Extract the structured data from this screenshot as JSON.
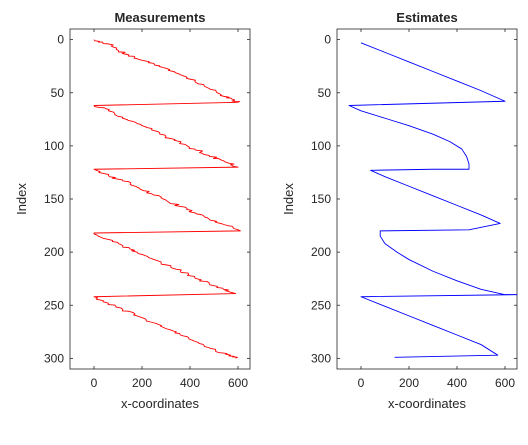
{
  "chart_data": [
    {
      "type": "line",
      "title": "Measurements",
      "xlabel": "x-coordinates",
      "ylabel": "Index",
      "xlim": [
        -100,
        650
      ],
      "ylim": [
        -10,
        310
      ],
      "y_reversed": true,
      "xticks": [
        0,
        200,
        400,
        600
      ],
      "yticks": [
        0,
        50,
        100,
        150,
        200,
        250,
        300
      ],
      "grid": false,
      "series": [
        {
          "color": "#ff0000",
          "noisy": true,
          "x": [
            0,
            60,
            100,
            140,
            180,
            240,
            300,
            360,
            420,
            480,
            530,
            575,
            600,
            0,
            60,
            120,
            180,
            240,
            300,
            360,
            420,
            480,
            540,
            600,
            0,
            60,
            120,
            180,
            240,
            300,
            360,
            420,
            480,
            540,
            610,
            0,
            60,
            120,
            180,
            240,
            300,
            360,
            420,
            480,
            540,
            590,
            0,
            60,
            120,
            180,
            240,
            300,
            360,
            420,
            480,
            540,
            580,
            590
          ],
          "y": [
            0,
            4,
            10,
            14,
            18,
            22,
            27,
            33,
            39,
            46,
            52,
            56,
            59,
            62,
            67,
            73,
            79,
            85,
            91,
            97,
            103,
            109,
            114,
            120,
            122,
            128,
            133,
            139,
            145,
            151,
            157,
            163,
            169,
            174,
            180,
            182,
            188,
            194,
            200,
            206,
            212,
            218,
            224,
            230,
            235,
            239,
            242,
            248,
            254,
            260,
            266,
            272,
            278,
            284,
            290,
            295,
            298,
            300
          ]
        }
      ]
    },
    {
      "type": "line",
      "title": "Estimates",
      "xlabel": "x-coordinates",
      "ylabel": "Index",
      "xlim": [
        -100,
        650
      ],
      "ylim": [
        -10,
        310
      ],
      "y_reversed": true,
      "xticks": [
        0,
        200,
        400,
        600
      ],
      "yticks": [
        0,
        50,
        100,
        150,
        200,
        250,
        300
      ],
      "grid": false,
      "series": [
        {
          "color": "#0000ff",
          "noisy": false,
          "x": [
            0,
            100,
            200,
            300,
            400,
            500,
            600,
            -50,
            0,
            100,
            200,
            300,
            370,
            420,
            440,
            450,
            450,
            380,
            300,
            40,
            100,
            200,
            300,
            400,
            500,
            580,
            450,
            80,
            80,
            100,
            150,
            200,
            300,
            400,
            500,
            600,
            650,
            0,
            100,
            200,
            300,
            400,
            500,
            570,
            140
          ],
          "y": [
            3,
            12,
            21,
            30,
            39,
            48,
            58,
            62,
            67,
            74,
            81,
            89,
            96,
            103,
            110,
            117,
            122,
            122,
            122,
            123,
            129,
            138,
            147,
            156,
            165,
            173,
            179,
            180,
            185,
            192,
            200,
            207,
            218,
            227,
            235,
            240,
            240,
            242,
            251,
            260,
            269,
            278,
            287,
            297,
            299
          ]
        }
      ]
    }
  ]
}
